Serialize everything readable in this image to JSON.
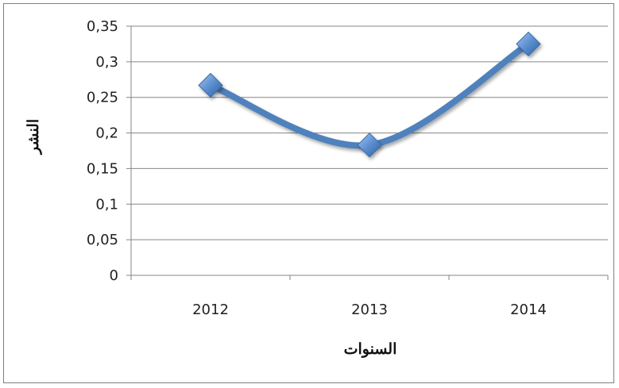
{
  "chart_data": {
    "type": "line",
    "title": "",
    "xlabel": "السنوات",
    "ylabel": "النشر",
    "categories": [
      "2012",
      "2013",
      "2014"
    ],
    "series": [
      {
        "values": [
          0.267,
          0.183,
          0.325
        ],
        "color": "#4f81bd",
        "marker": "diamond",
        "smooth": true
      }
    ],
    "ylim": [
      0,
      0.35
    ],
    "yticks": [
      0,
      0.05,
      0.1,
      0.15,
      0.2,
      0.25,
      0.3,
      0.35
    ],
    "ytick_labels": [
      "0",
      "0,05",
      "0,1",
      "0,15",
      "0,2",
      "0,25",
      "0,3",
      "0,35"
    ],
    "grid": true,
    "gridline_color": "#868686",
    "legend": "none"
  }
}
